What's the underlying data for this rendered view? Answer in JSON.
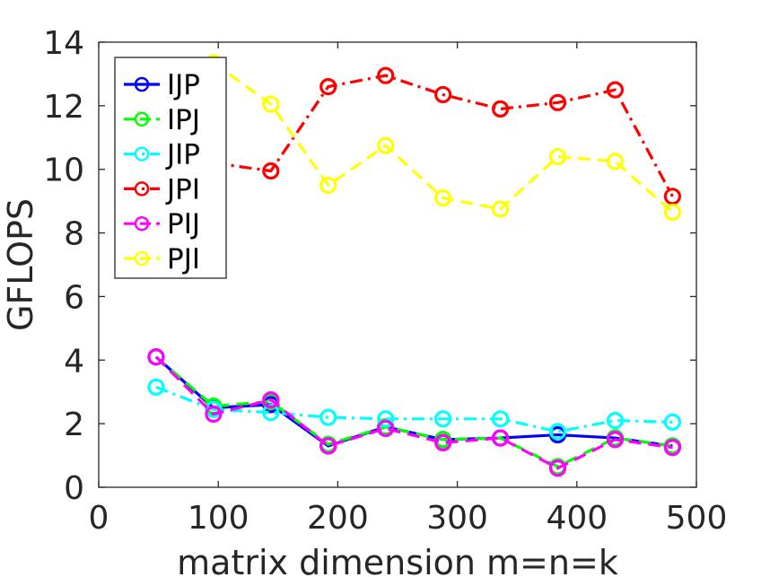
{
  "chart_data": {
    "type": "line",
    "title": "",
    "xlabel": "matrix dimension m=n=k",
    "ylabel": "GFLOPS",
    "xlim": [
      0,
      500
    ],
    "ylim": [
      0,
      14
    ],
    "xticks": [
      0,
      100,
      200,
      300,
      400,
      500
    ],
    "yticks": [
      0,
      2,
      4,
      6,
      8,
      10,
      12,
      14
    ],
    "grid": false,
    "legend_position": "top-left",
    "x": [
      48,
      96,
      144,
      192,
      240,
      288,
      336,
      384,
      432,
      480
    ],
    "series": [
      {
        "name": "IJP",
        "color": "#0000ff",
        "values": [
          4.1,
          2.5,
          2.6,
          1.3,
          1.9,
          1.5,
          1.55,
          1.65,
          1.55,
          1.3
        ]
      },
      {
        "name": "IPJ",
        "color": "#00ff00",
        "values": [
          4.1,
          2.55,
          2.7,
          1.35,
          1.9,
          1.5,
          1.55,
          0.65,
          1.55,
          1.3
        ]
      },
      {
        "name": "JIP",
        "color": "#00ffff",
        "values": [
          3.15,
          2.45,
          2.35,
          2.2,
          2.15,
          2.15,
          2.15,
          1.75,
          2.1,
          2.05
        ]
      },
      {
        "name": "JPI",
        "color": "#ff0000",
        "values": [
          null,
          10.2,
          9.95,
          12.6,
          12.95,
          12.35,
          11.9,
          12.1,
          12.5,
          9.15
        ]
      },
      {
        "name": "PIJ",
        "color": "#ff00ff",
        "values": [
          4.1,
          2.3,
          2.75,
          1.3,
          1.85,
          1.4,
          1.55,
          0.6,
          1.5,
          1.25
        ]
      },
      {
        "name": "PJI",
        "color": "#ffff00",
        "values": [
          null,
          13.35,
          12.05,
          9.5,
          10.75,
          9.1,
          8.75,
          10.4,
          10.25,
          8.65
        ]
      }
    ]
  }
}
